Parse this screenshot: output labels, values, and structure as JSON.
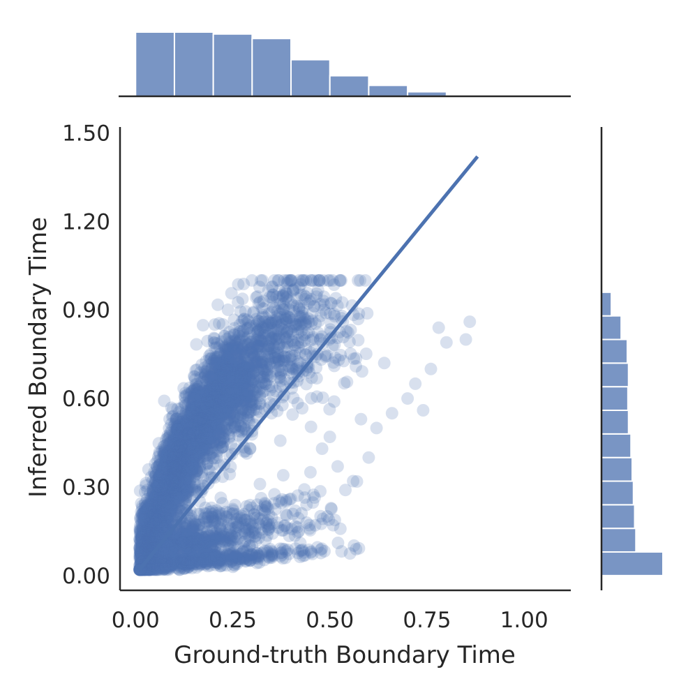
{
  "chart_data": {
    "type": "scatter",
    "xlabel": "Ground-truth Boundary Time",
    "ylabel": "Inferred Boundary Time",
    "xlim": [
      -0.04,
      1.12
    ],
    "ylim": [
      -0.05,
      1.52
    ],
    "x_ticks": [
      0.0,
      0.25,
      0.5,
      0.75,
      1.0
    ],
    "x_tick_labels": [
      "0.00",
      "0.25",
      "0.50",
      "0.75",
      "1.00"
    ],
    "y_ticks": [
      0.0,
      0.3,
      0.6,
      0.9,
      1.2,
      1.5
    ],
    "y_tick_labels": [
      "0.00",
      "0.30",
      "0.60",
      "0.90",
      "1.20",
      "1.50"
    ],
    "grid": false,
    "legend": "none",
    "point_color": "#4c72b0",
    "point_alpha": 0.22,
    "regression_line": {
      "x": [
        0.01,
        0.88
      ],
      "y": [
        0.02,
        1.42
      ]
    },
    "scatter_generator": {
      "n_points": 5000,
      "seed": 7
    },
    "sample_points": {
      "x": [
        0.86,
        0.85,
        0.8,
        0.78,
        0.76,
        0.74,
        0.72,
        0.7,
        0.66,
        0.64,
        0.62,
        0.6,
        0.58,
        0.56,
        0.54,
        0.52,
        0.5,
        0.48,
        0.45,
        0.44,
        0.42,
        0.4,
        0.38,
        0.35,
        0.32,
        0.3,
        0.28,
        0.26,
        0.24,
        0.22,
        0.2,
        0.18,
        0.15,
        0.12,
        0.1,
        0.08,
        0.06,
        0.04,
        0.03,
        0.02,
        0.02,
        0.05,
        0.1,
        0.2,
        0.3
      ],
      "y": [
        0.86,
        0.8,
        0.79,
        0.84,
        0.7,
        0.56,
        0.65,
        0.6,
        0.55,
        0.72,
        0.5,
        0.4,
        0.53,
        0.32,
        0.29,
        0.37,
        0.47,
        0.43,
        0.35,
        0.24,
        0.15,
        0.26,
        0.34,
        0.55,
        0.31,
        0.06,
        0.42,
        0.18,
        0.48,
        0.12,
        0.45,
        0.52,
        0.6,
        0.5,
        0.4,
        0.3,
        0.2,
        0.14,
        0.08,
        0.05,
        0.03,
        0.04,
        0.05,
        0.06,
        0.1
      ]
    },
    "marginal_x": {
      "bin_edges": [
        0.0,
        0.1,
        0.2,
        0.3,
        0.4,
        0.5,
        0.6,
        0.7,
        0.8,
        0.9
      ],
      "counts": [
        100,
        100,
        97,
        90,
        57,
        32,
        17,
        7,
        1
      ]
    },
    "marginal_y": {
      "bin_edges": [
        0.0,
        0.08,
        0.16,
        0.24,
        0.32,
        0.4,
        0.48,
        0.56,
        0.64,
        0.72,
        0.8,
        0.88,
        0.96
      ],
      "counts": [
        100,
        56,
        54,
        52,
        50,
        48,
        44,
        43,
        44,
        42,
        32,
        16
      ]
    }
  }
}
